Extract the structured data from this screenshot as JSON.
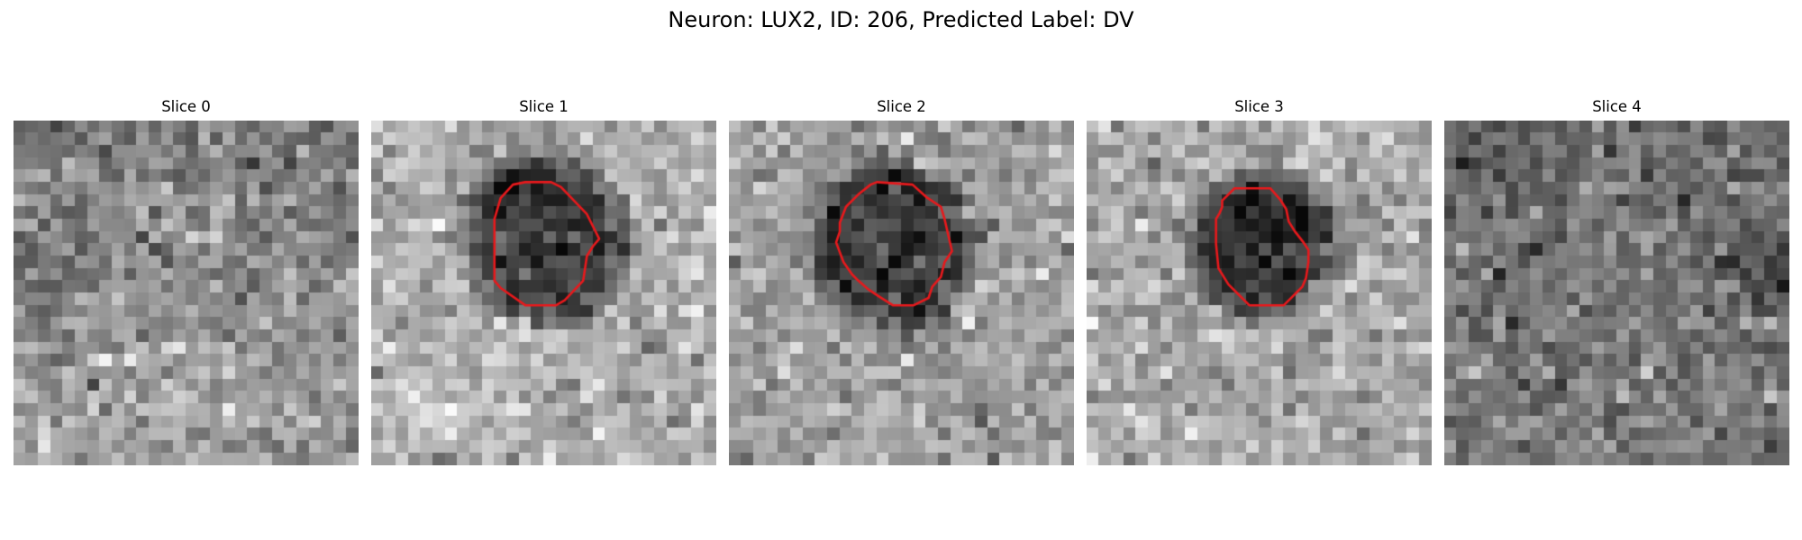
{
  "figure": {
    "title": "Neuron: LUX2, ID: 206, Predicted Label: DV"
  },
  "panels": [
    {
      "title": "Slice 0",
      "contour": null,
      "noise_seed": 11,
      "style": "slice0"
    },
    {
      "title": "Slice 1",
      "contour": [
        [
          12.5,
          5
        ],
        [
          11.5,
          5.2
        ],
        [
          10.5,
          6.3
        ],
        [
          10,
          8
        ],
        [
          10,
          13
        ],
        [
          10.5,
          13.6
        ],
        [
          12.5,
          15
        ],
        [
          15,
          15
        ],
        [
          15.7,
          14.6
        ],
        [
          17.2,
          13
        ],
        [
          17.5,
          11
        ],
        [
          18,
          10.2
        ],
        [
          18.5,
          9.6
        ],
        [
          17.5,
          7.6
        ],
        [
          15.4,
          5.4
        ],
        [
          14.6,
          5
        ]
      ],
      "noise_seed": 23,
      "style": "slice1"
    },
    {
      "title": "Slice 2",
      "contour": [
        [
          12,
          5
        ],
        [
          11.5,
          5.2
        ],
        [
          10.5,
          6
        ],
        [
          9.5,
          7
        ],
        [
          9,
          8.3
        ],
        [
          9,
          9
        ],
        [
          8.7,
          9.9
        ],
        [
          9.3,
          11.5
        ],
        [
          10,
          12.5
        ],
        [
          10.5,
          13
        ],
        [
          11.3,
          13.7
        ],
        [
          12.2,
          14.3
        ],
        [
          13.3,
          15
        ],
        [
          15,
          15
        ],
        [
          16.2,
          14.4
        ],
        [
          16.5,
          13.5
        ],
        [
          17.2,
          12.7
        ],
        [
          17.5,
          11.5
        ],
        [
          18.1,
          10.6
        ],
        [
          17.8,
          9.3
        ],
        [
          17.5,
          8
        ],
        [
          17.2,
          7
        ],
        [
          16,
          6.2
        ],
        [
          14.9,
          5.2
        ]
      ],
      "noise_seed": 37,
      "style": "slice2"
    },
    {
      "title": "Slice 3",
      "contour": [
        [
          12,
          5.5
        ],
        [
          11.5,
          6
        ],
        [
          11,
          6.5
        ],
        [
          11,
          7
        ],
        [
          10.8,
          7.5
        ],
        [
          10.5,
          8
        ],
        [
          10.5,
          10
        ],
        [
          10.7,
          12
        ],
        [
          11.5,
          13.3
        ],
        [
          12.2,
          14
        ],
        [
          13.2,
          15
        ],
        [
          16,
          15
        ],
        [
          16.5,
          14.5
        ],
        [
          17,
          14
        ],
        [
          17.5,
          13.5
        ],
        [
          17.8,
          12.8
        ],
        [
          18,
          11.5
        ],
        [
          18,
          10.5
        ],
        [
          17.6,
          9.9
        ],
        [
          16.9,
          9
        ],
        [
          16.4,
          8.2
        ],
        [
          16.2,
          7.2
        ],
        [
          15.7,
          6.4
        ],
        [
          14.9,
          5.5
        ]
      ],
      "noise_seed": 53,
      "style": "slice3"
    },
    {
      "title": "Slice 4",
      "contour": null,
      "noise_seed": 71,
      "style": "slice4"
    }
  ],
  "colors": {
    "contour": "#e8191c",
    "background": "#ffffff",
    "colormap": "gray"
  }
}
